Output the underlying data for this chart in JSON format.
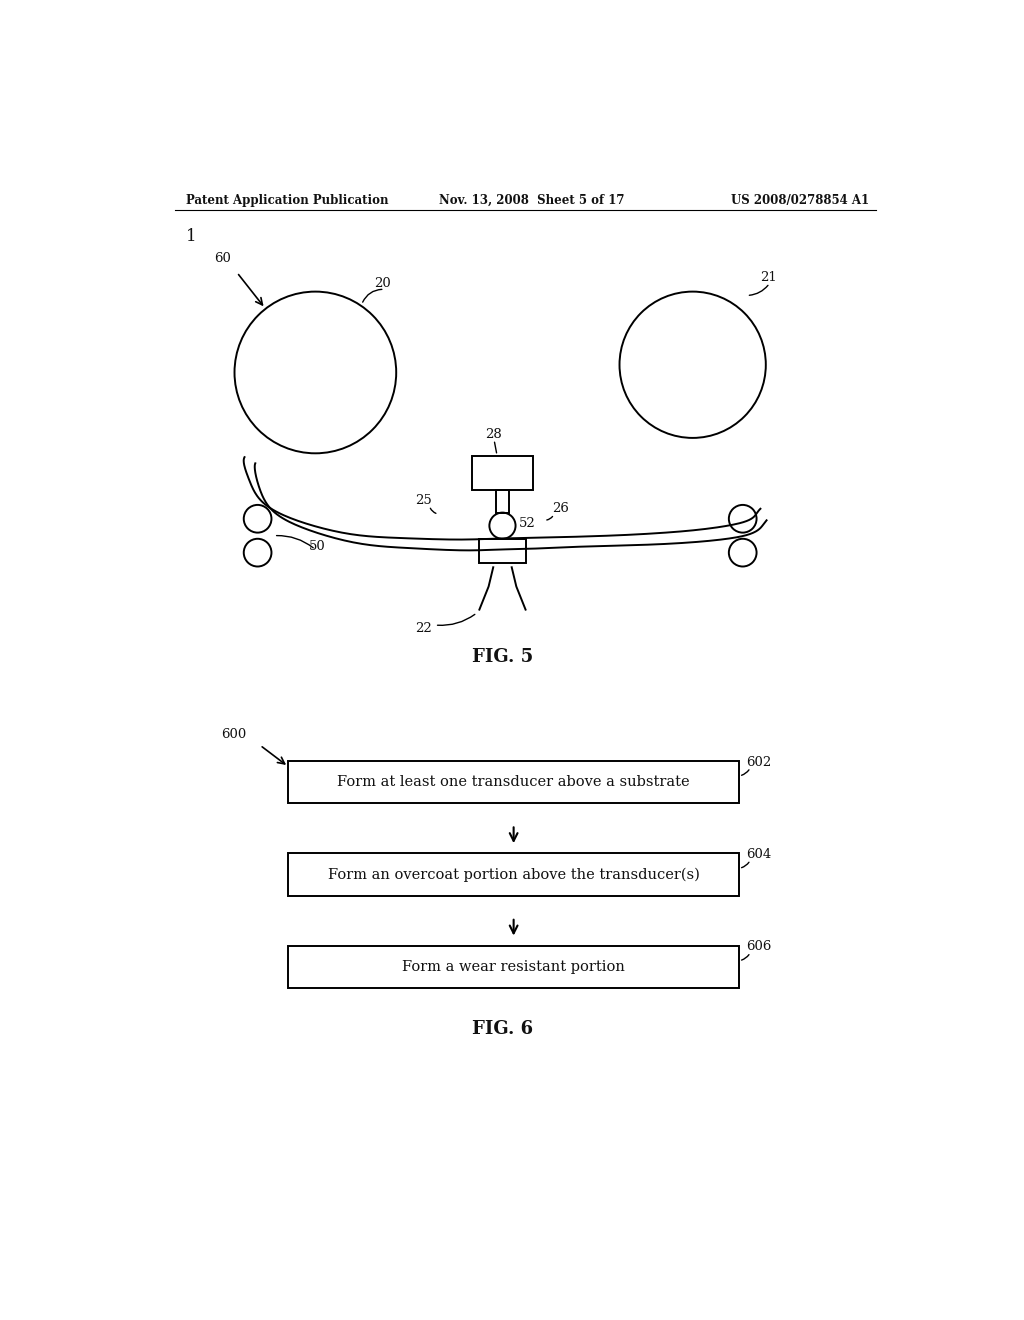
{
  "bg_color": "#ffffff",
  "header_left": "Patent Application Publication",
  "header_mid": "Nov. 13, 2008  Sheet 5 of 17",
  "header_right": "US 2008/0278854 A1",
  "fig5_label": "FIG. 5",
  "fig6_label": "FIG. 6",
  "fig5_ref_1": "1",
  "fig5_ref_60": "60",
  "fig5_ref_20": "20",
  "fig5_ref_21": "21",
  "fig5_ref_28": "28",
  "fig5_ref_25": "25",
  "fig5_ref_26": "26",
  "fig5_ref_52": "52",
  "fig5_ref_50": "50",
  "fig5_ref_22": "22",
  "fig6_ref_600": "600",
  "fig6_ref_602": "602",
  "fig6_ref_604": "604",
  "fig6_ref_606": "606",
  "box1_text": "Form at least one transducer above a substrate",
  "box2_text": "Form an overcoat portion above the transducer(s)",
  "box3_text": "Form a wear resistant portion"
}
